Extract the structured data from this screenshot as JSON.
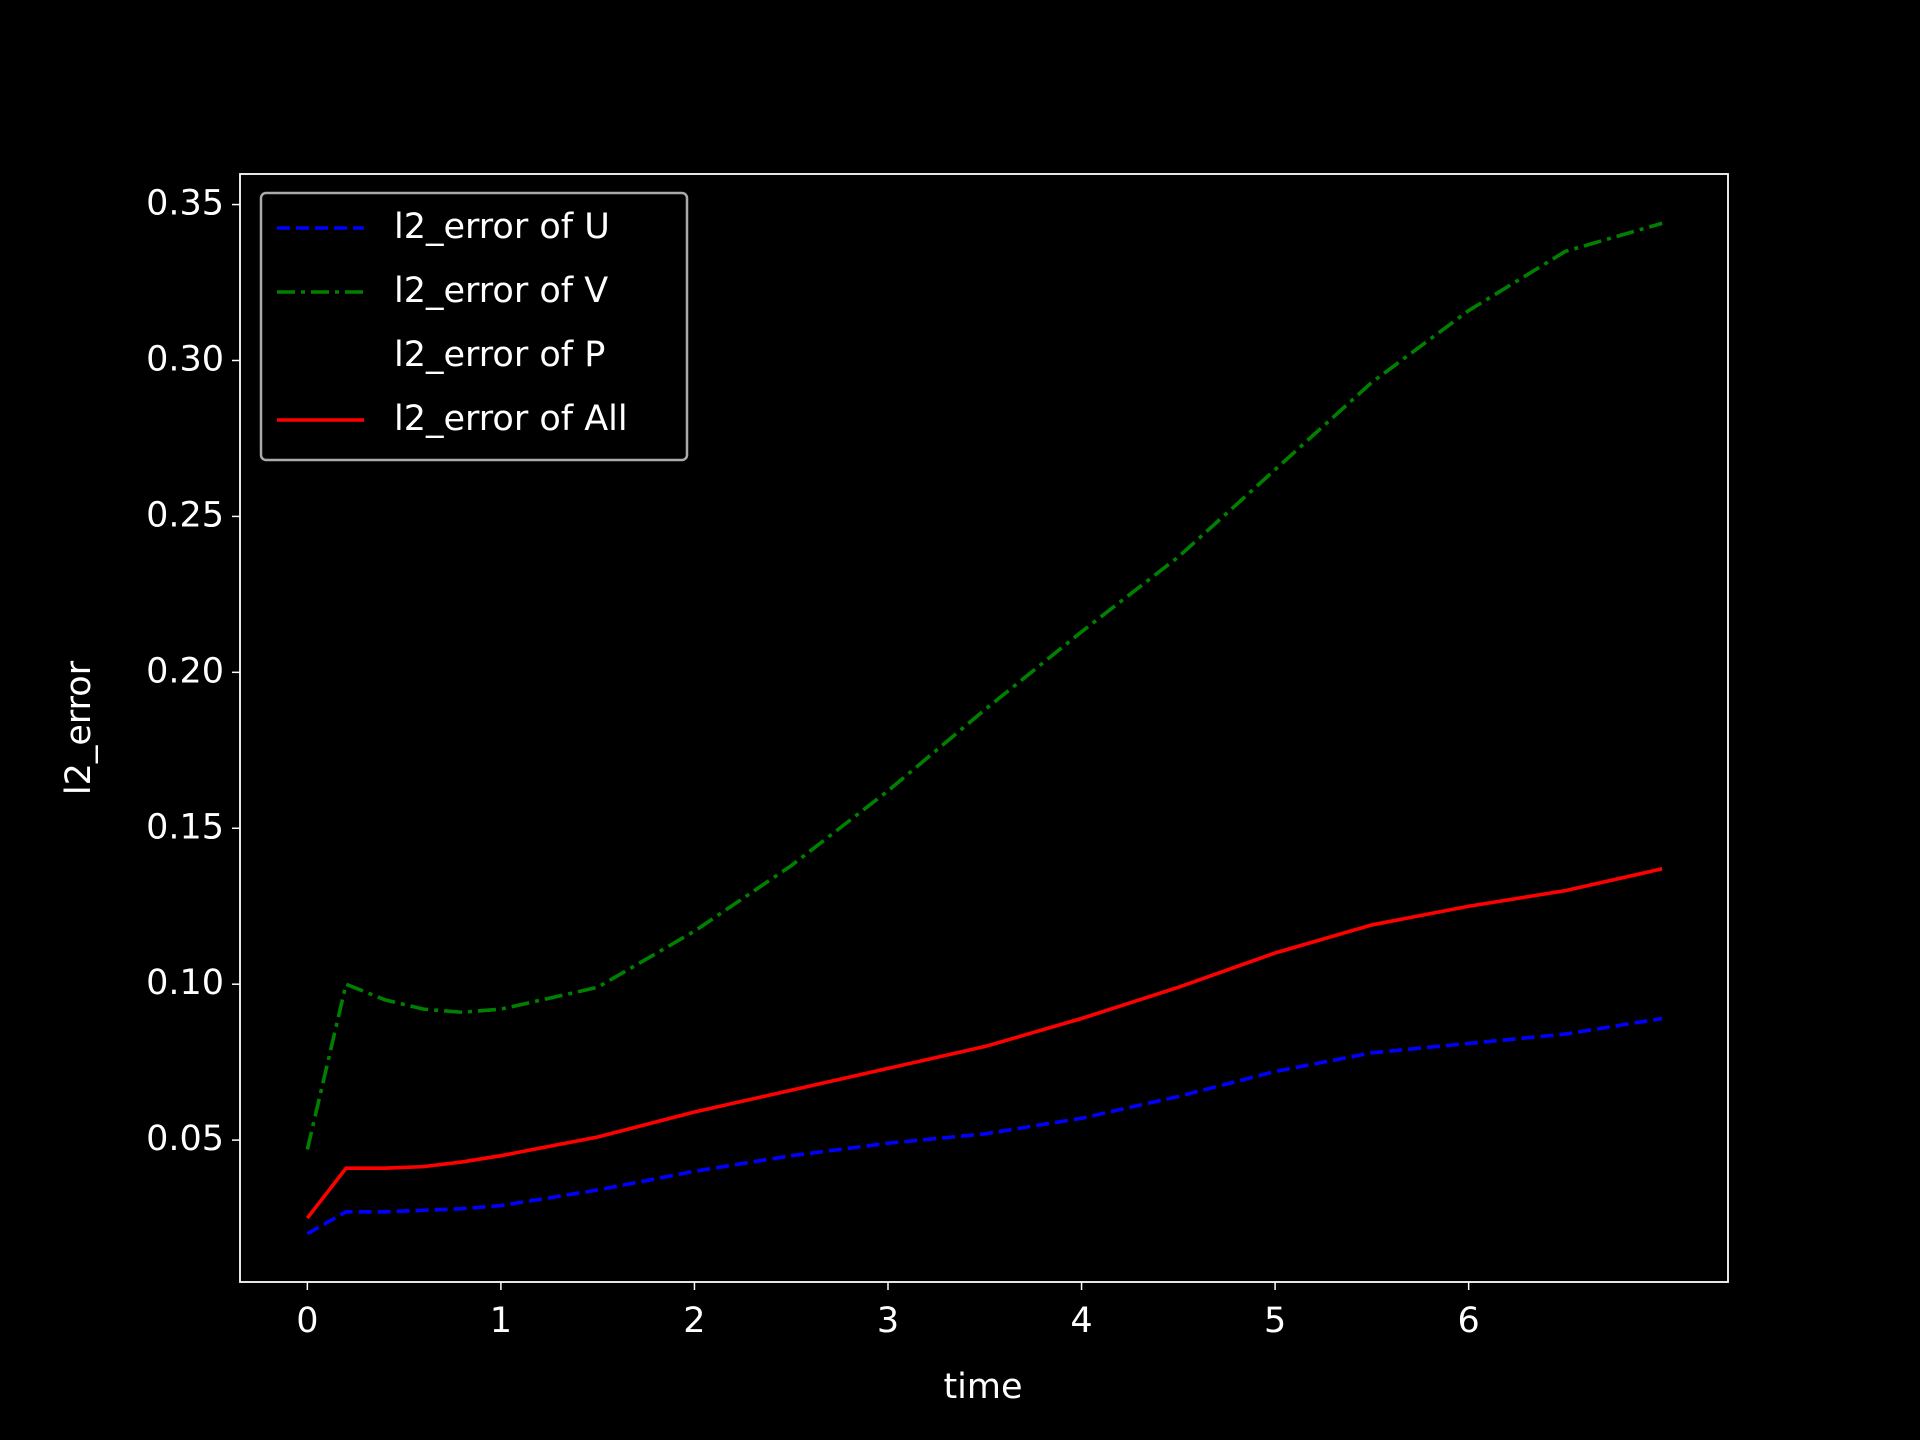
{
  "chart_data": {
    "type": "line",
    "xlabel": "time",
    "ylabel": "l2_error",
    "x": [
      0,
      0.2,
      0.4,
      0.6,
      0.8,
      1,
      1.5,
      2,
      2.5,
      3,
      3.5,
      4,
      4.5,
      5,
      5.5,
      6,
      6.5,
      7
    ],
    "series": [
      {
        "name": "l2_error of U",
        "color": "#0000ff",
        "linestyle": "--",
        "values": [
          0.02,
          0.027,
          0.027,
          0.0275,
          0.028,
          0.029,
          0.034,
          0.04,
          0.045,
          0.049,
          0.052,
          0.057,
          0.064,
          0.072,
          0.078,
          0.081,
          0.084,
          0.089
        ]
      },
      {
        "name": "l2_error of V",
        "color": "#008000",
        "linestyle": "-.",
        "values": [
          0.047,
          0.1,
          0.095,
          0.092,
          0.091,
          0.092,
          0.099,
          0.117,
          0.138,
          0.162,
          0.188,
          0.213,
          0.237,
          0.265,
          0.293,
          0.316,
          0.335,
          0.344
        ]
      },
      {
        "name": "l2_error of P",
        "color": "#000000",
        "linestyle": "-",
        "values": [
          null,
          null,
          null,
          null,
          null,
          null,
          null,
          null,
          null,
          null,
          null,
          null,
          null,
          null,
          null,
          null,
          null,
          null
        ]
      },
      {
        "name": "l2_error of All",
        "color": "#ff0000",
        "linestyle": "-",
        "values": [
          0.025,
          0.041,
          0.041,
          0.0415,
          0.043,
          0.045,
          0.051,
          0.059,
          0.066,
          0.073,
          0.08,
          0.089,
          0.099,
          0.11,
          0.119,
          0.125,
          0.13,
          0.137
        ]
      }
    ],
    "xlim": [
      -0.348,
      7.34
    ],
    "xticks": [
      0,
      1,
      2,
      3,
      4,
      5,
      6
    ],
    "ylim": [
      0.0045,
      0.3598
    ],
    "yticks": [
      0.05,
      {
        "value": 0.1,
        "label": "0.10"
      },
      0.15,
      {
        "value": 0.2,
        "label": "0.20"
      },
      0.25,
      {
        "value": 0.3,
        "label": "0.30"
      },
      0.35
    ],
    "legend": "upper left",
    "grid": false
  }
}
